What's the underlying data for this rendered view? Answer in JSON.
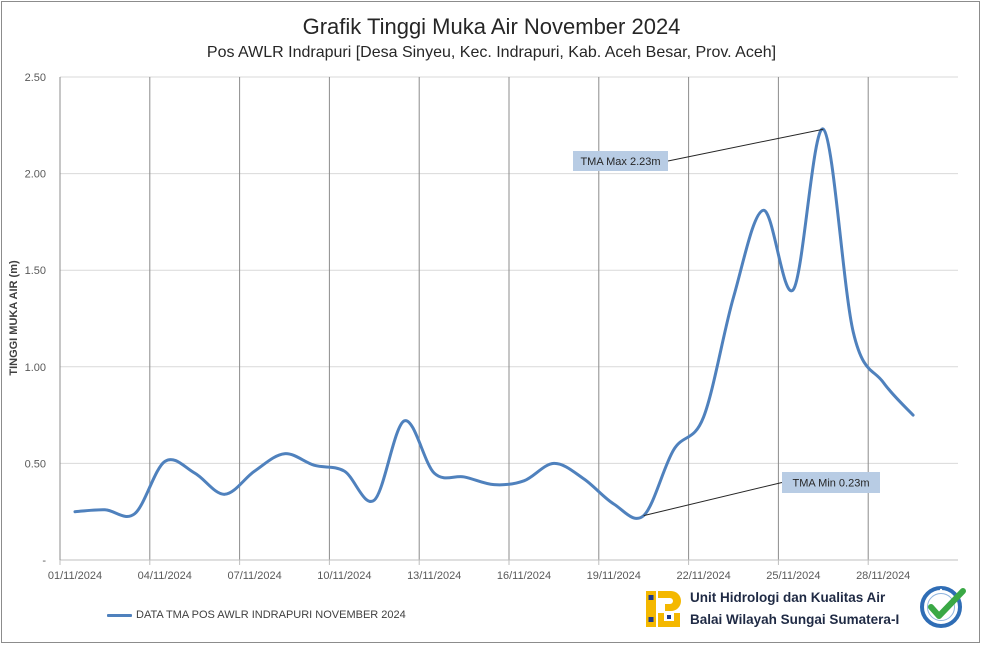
{
  "chart_data": {
    "type": "line",
    "title": "Grafik Tinggi Muka Air November 2024",
    "subtitle": "Pos AWLR Indrapuri [Desa Sinyeu, Kec. Indrapuri, Kab. Aceh Besar, Prov. Aceh]",
    "xlabel": "",
    "ylabel": "TINGGI MUKA AIR (m)",
    "x_range": [
      "01/11/2024",
      "30/11/2024"
    ],
    "x_tick_labels": [
      "01/11/2024",
      "04/11/2024",
      "07/11/2024",
      "10/11/2024",
      "13/11/2024",
      "16/11/2024",
      "19/11/2024",
      "22/11/2024",
      "25/11/2024",
      "28/11/2024"
    ],
    "ylim": [
      0,
      2.5
    ],
    "y_ticks": [
      {
        "value": 0,
        "label": "-"
      },
      {
        "value": 0.5,
        "label": "0.50"
      },
      {
        "value": 1.0,
        "label": "1.00"
      },
      {
        "value": 1.5,
        "label": "1.50"
      },
      {
        "value": 2.0,
        "label": "2.00"
      },
      {
        "value": 2.5,
        "label": "2.50"
      }
    ],
    "grid": {
      "horizontal": true,
      "vertical": true
    },
    "legend": {
      "position": "bottom-left"
    },
    "series": [
      {
        "name": "DATA TMA POS AWLR INDRAPURI NOVEMBER 2024",
        "color": "#4f81bd",
        "x": [
          "01/11/2024",
          "02/11/2024",
          "03/11/2024",
          "04/11/2024",
          "05/11/2024",
          "06/11/2024",
          "07/11/2024",
          "08/11/2024",
          "09/11/2024",
          "10/11/2024",
          "11/11/2024",
          "12/11/2024",
          "13/11/2024",
          "14/11/2024",
          "15/11/2024",
          "16/11/2024",
          "17/11/2024",
          "18/11/2024",
          "19/11/2024",
          "20/11/2024",
          "21/11/2024",
          "22/11/2024",
          "23/11/2024",
          "24/11/2024",
          "25/11/2024",
          "26/11/2024",
          "27/11/2024",
          "28/11/2024",
          "29/11/2024"
        ],
        "y": [
          0.25,
          0.26,
          0.24,
          0.51,
          0.45,
          0.34,
          0.46,
          0.55,
          0.49,
          0.46,
          0.31,
          0.72,
          0.45,
          0.43,
          0.39,
          0.41,
          0.5,
          0.42,
          0.29,
          0.23,
          0.57,
          0.74,
          1.36,
          1.81,
          1.4,
          2.23,
          1.18,
          0.92,
          0.75
        ]
      }
    ],
    "annotations": [
      {
        "text": "TMA Max 2.23m",
        "x": "26/11/2024",
        "y": 2.23
      },
      {
        "text": "TMA Min 0.23m",
        "x": "20/11/2024",
        "y": 0.23
      }
    ]
  },
  "colors": {
    "annotation_box": "#b8cce4"
  },
  "footer": {
    "unit_name": "Unit Hidrologi dan Kualitas Air",
    "office_name": "Balai Wilayah Sungai Sumatera-I",
    "logo_icon": "pu-logo-icon",
    "badge_icon": "certified-badge-icon"
  }
}
